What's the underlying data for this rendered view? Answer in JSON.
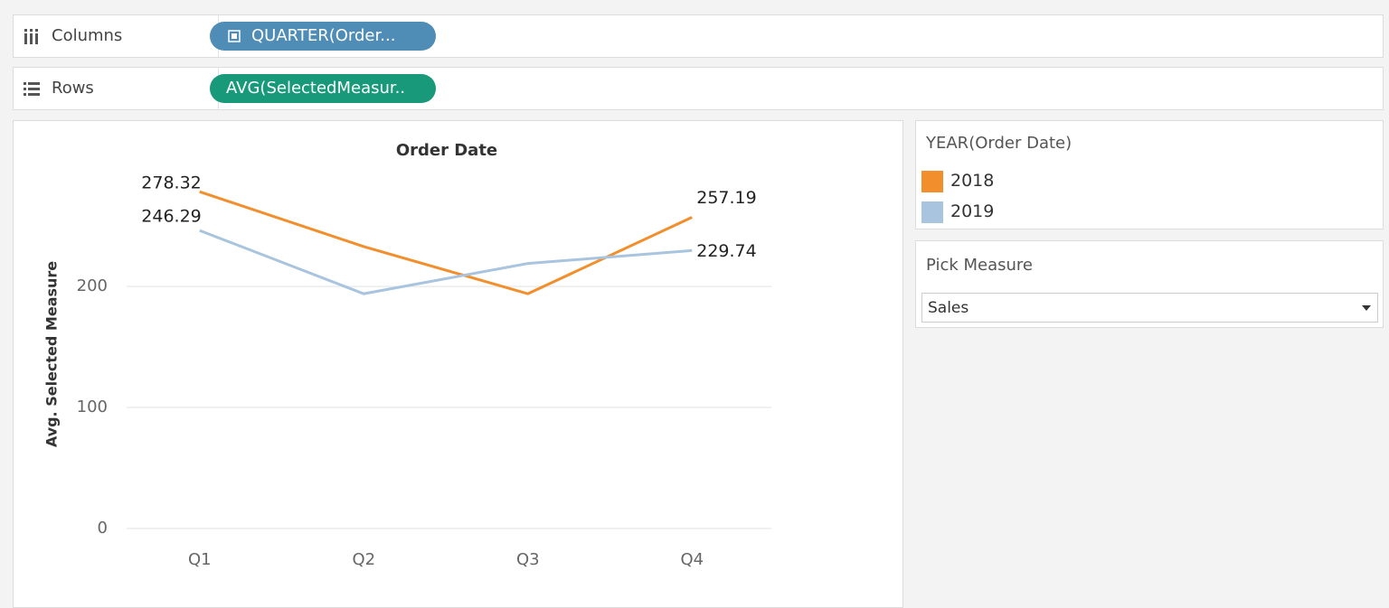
{
  "shelves": {
    "columns": {
      "label": "Columns",
      "pill": "QUARTER(Order..."
    },
    "rows": {
      "label": "Rows",
      "pill": "AVG(SelectedMeasur.."
    }
  },
  "chart_data": {
    "type": "line",
    "title": "Order Date",
    "y_label": "Avg. Selected Measure",
    "categories": [
      "Q1",
      "Q2",
      "Q3",
      "Q4"
    ],
    "series": [
      {
        "name": "2018",
        "color": "#f28e2b",
        "values": [
          278.32,
          233,
          194,
          257.19
        ]
      },
      {
        "name": "2019",
        "color": "#a9c4de",
        "values": [
          246.29,
          194,
          219,
          229.74
        ]
      }
    ],
    "ylim": [
      0,
      330
    ],
    "yticks": [
      0,
      100,
      200
    ],
    "grid": true
  },
  "legend": {
    "title": "YEAR(Order Date)"
  },
  "parameter": {
    "title": "Pick Measure",
    "value": "Sales"
  }
}
